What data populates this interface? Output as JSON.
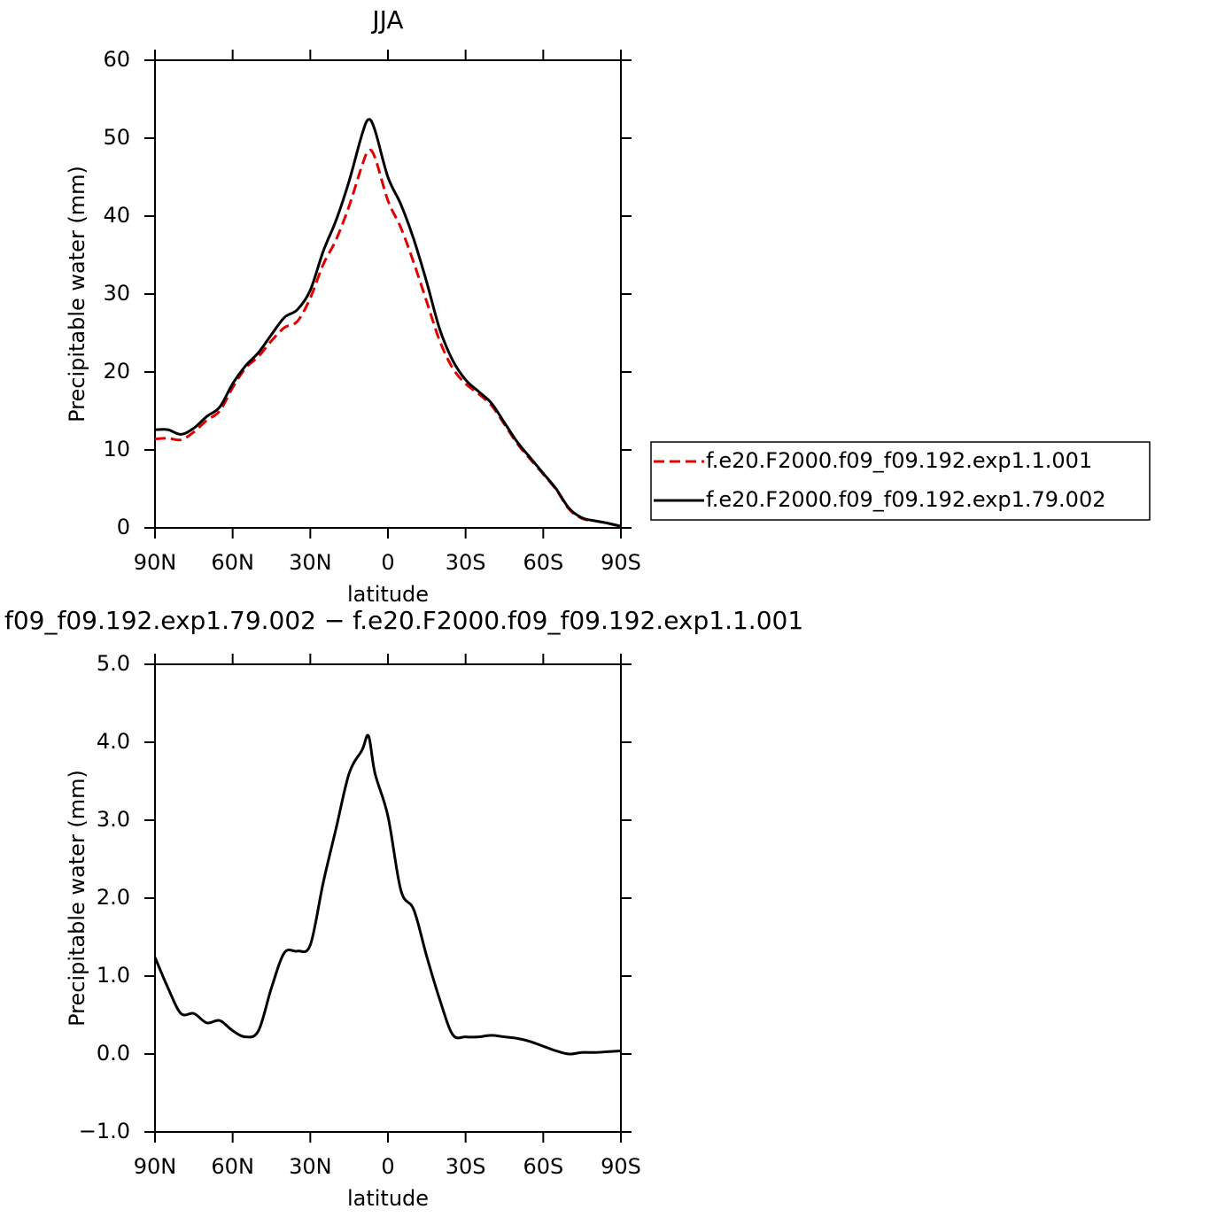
{
  "chart_data": [
    {
      "type": "line",
      "title": "JJA",
      "x_label": "latitude",
      "y_label": "Precipitable water (mm)",
      "x": [
        90,
        85,
        80,
        75,
        70,
        65,
        60,
        55,
        50,
        45,
        40,
        35,
        30,
        25,
        20,
        15,
        10,
        7.5,
        5,
        0,
        -5,
        -10,
        -15,
        -20,
        -25,
        -30,
        -35,
        -40,
        -45,
        -50,
        -55,
        -60,
        -65,
        -70,
        -75,
        -80,
        -85,
        -90
      ],
      "xlim": [
        90,
        -90
      ],
      "xticks": [
        {
          "value": 90,
          "label": "90N"
        },
        {
          "value": 60,
          "label": "60N"
        },
        {
          "value": 30,
          "label": "30N"
        },
        0,
        {
          "value": -30,
          "label": "30S"
        },
        {
          "value": -60,
          "label": "60S"
        },
        {
          "value": -90,
          "label": "90S"
        }
      ],
      "ylim": [
        0,
        60
      ],
      "yticks": [
        0,
        10,
        20,
        30,
        40,
        50,
        60
      ],
      "legend": "right",
      "series": [
        {
          "name": "f.e20.F2000.f09_f09.192.exp1.1.001",
          "color": "#e00000",
          "line_style": "dashed",
          "values": [
            11.4,
            11.5,
            11.3,
            12.3,
            13.8,
            15.0,
            18.0,
            20.5,
            22.0,
            24.0,
            25.7,
            26.5,
            29.5,
            33.8,
            37.0,
            41.3,
            46.5,
            48.4,
            47.5,
            42.0,
            38.5,
            34.0,
            29.0,
            24.0,
            20.5,
            18.5,
            17.2,
            15.7,
            13.3,
            10.8,
            8.8,
            6.9,
            4.9,
            2.4,
            1.2,
            0.9,
            0.6,
            0.2
          ]
        },
        {
          "name": "f.e20.F2000.f09_f09.192.exp1.79.002",
          "color": "#000000",
          "line_style": "solid",
          "values": [
            12.6,
            12.6,
            12.0,
            12.8,
            14.3,
            15.5,
            18.5,
            20.8,
            22.5,
            24.8,
            27.0,
            28.0,
            30.5,
            35.5,
            39.5,
            44.5,
            50.5,
            52.4,
            51.0,
            45.0,
            41.5,
            37.0,
            31.5,
            25.5,
            21.5,
            19.0,
            17.5,
            16.0,
            13.5,
            11.0,
            9.0,
            7.0,
            5.0,
            2.5,
            1.3,
            0.9,
            0.6,
            0.2
          ]
        }
      ]
    },
    {
      "type": "line",
      "title": "f09_f09.192.exp1.79.002 − f.e20.F2000.f09_f09.192.exp1.1.001",
      "x_label": "latitude",
      "y_label": "Precipitable water (mm)",
      "x": [
        90,
        85,
        80,
        75,
        70,
        65,
        60,
        55,
        50,
        45,
        40,
        35,
        30,
        25,
        20,
        15,
        10,
        7.5,
        5,
        0,
        -5,
        -10,
        -15,
        -20,
        -25,
        -30,
        -35,
        -40,
        -45,
        -50,
        -55,
        -60,
        -65,
        -70,
        -75,
        -80,
        -85,
        -90
      ],
      "xlim": [
        90,
        -90
      ],
      "xticks": [
        {
          "value": 90,
          "label": "90N"
        },
        {
          "value": 60,
          "label": "60N"
        },
        {
          "value": 30,
          "label": "30N"
        },
        0,
        {
          "value": -30,
          "label": "30S"
        },
        {
          "value": -60,
          "label": "60S"
        },
        {
          "value": -90,
          "label": "90S"
        }
      ],
      "ylim": [
        -1,
        5
      ],
      "yticks": [
        {
          "value": -1,
          "label": "−1.0"
        },
        {
          "value": 0,
          "label": "0.0"
        },
        {
          "value": 1,
          "label": "1.0"
        },
        {
          "value": 2,
          "label": "2.0"
        },
        {
          "value": 3,
          "label": "3.0"
        },
        {
          "value": 4,
          "label": "4.0"
        },
        {
          "value": 5,
          "label": "5.0"
        }
      ],
      "color": "#000000",
      "values": [
        1.24,
        0.85,
        0.52,
        0.52,
        0.4,
        0.43,
        0.3,
        0.22,
        0.3,
        0.85,
        1.3,
        1.32,
        1.4,
        2.2,
        2.9,
        3.6,
        3.9,
        4.08,
        3.6,
        3.05,
        2.1,
        1.85,
        1.25,
        0.7,
        0.25,
        0.22,
        0.22,
        0.24,
        0.22,
        0.2,
        0.16,
        0.1,
        0.04,
        0.0,
        0.02,
        0.02,
        0.03,
        0.04
      ]
    }
  ]
}
